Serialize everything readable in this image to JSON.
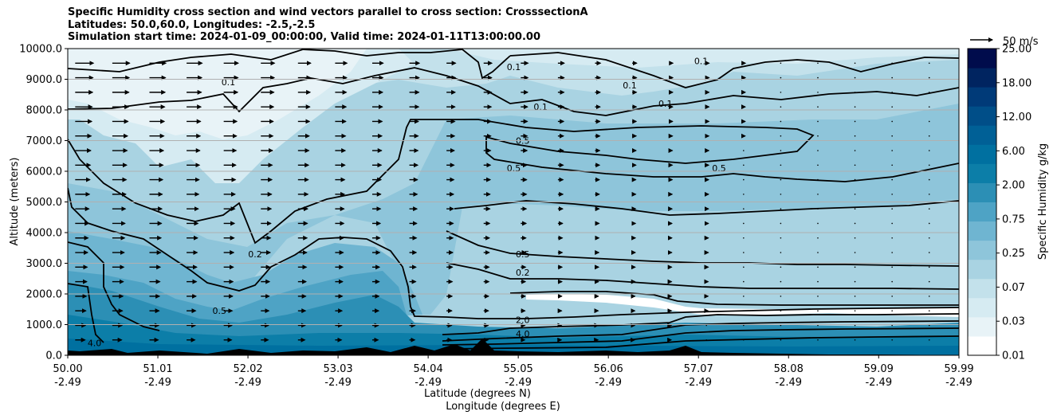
{
  "chart_data": {
    "type": "contourf",
    "title_lines": [
      "Specific Humidity cross section and wind vectors parallel to cross section: CrosssectionA",
      "Latitudes: 50.0,60.0, Longitudes: -2.5,-2.5",
      "Simulation start time: 2024-01-09_00:00:00, Valid time: 2024-01-11T13:00:00.00"
    ],
    "ylabel": "Altitude (meters)",
    "xlabel_lines": [
      "Latitude (degrees N)",
      "Longitude (degrees E)"
    ],
    "ylim": [
      0,
      10000
    ],
    "xlim": [
      50.0,
      59.99
    ],
    "y_ticks": [
      0,
      1000,
      2000,
      3000,
      4000,
      5000,
      6000,
      7000,
      8000,
      9000,
      10000
    ],
    "y_tick_labels": [
      "0.0",
      "1000.0",
      "2000.0",
      "3000.0",
      "4000.0",
      "5000.0",
      "6000.0",
      "7000.0",
      "8000.0",
      "9000.0",
      "10000.0"
    ],
    "x_ticks": [
      50.0,
      51.01,
      52.02,
      53.03,
      54.04,
      55.05,
      56.06,
      57.07,
      58.08,
      59.09,
      59.99
    ],
    "x_tick_labels": [
      {
        "lat": "50.00",
        "lon": "-2.49"
      },
      {
        "lat": "51.01",
        "lon": "-2.49"
      },
      {
        "lat": "52.02",
        "lon": "-2.49"
      },
      {
        "lat": "53.03",
        "lon": "-2.49"
      },
      {
        "lat": "54.04",
        "lon": "-2.49"
      },
      {
        "lat": "55.05",
        "lon": "-2.49"
      },
      {
        "lat": "56.06",
        "lon": "-2.49"
      },
      {
        "lat": "57.07",
        "lon": "-2.49"
      },
      {
        "lat": "58.08",
        "lon": "-2.49"
      },
      {
        "lat": "59.09",
        "lon": "-2.49"
      },
      {
        "lat": "59.99",
        "lon": "-2.49"
      }
    ],
    "grid_horizontal": true,
    "colorbar": {
      "label": "Specific Humidity g/kg",
      "levels": [
        "0.01",
        "0.03",
        "0.07",
        "0.25",
        "0.75",
        "2.00",
        "6.00",
        "12.00",
        "18.00",
        "25.00"
      ],
      "colors": [
        "#ffffff",
        "#e8f3f7",
        "#d6ebf2",
        "#c3e1eb",
        "#a9d3e2",
        "#8ec5da",
        "#6fb5d1",
        "#4ea3c5",
        "#2c8fb5",
        "#0c7ea8",
        "#0070a0",
        "#006096",
        "#004e88",
        "#003a78",
        "#002460",
        "#000c4c"
      ]
    },
    "quiver_key": {
      "label": "50 m/s",
      "value": 50
    },
    "contour_labels": [
      {
        "text": "0.1",
        "x": 51.8,
        "y": 8800
      },
      {
        "text": "0.2",
        "x": 52.1,
        "y": 3200
      },
      {
        "text": "0.5",
        "x": 51.7,
        "y": 1350
      },
      {
        "text": "4.0",
        "x": 50.3,
        "y": 300
      },
      {
        "text": "0.1",
        "x": 55.0,
        "y": 9300
      },
      {
        "text": "0.1",
        "x": 55.3,
        "y": 8000
      },
      {
        "text": "0.5",
        "x": 55.1,
        "y": 6900
      },
      {
        "text": "0.5",
        "x": 55.0,
        "y": 6000
      },
      {
        "text": "0.5",
        "x": 57.3,
        "y": 6000
      },
      {
        "text": "0.1",
        "x": 56.3,
        "y": 8700
      },
      {
        "text": "0.1",
        "x": 56.7,
        "y": 8100
      },
      {
        "text": "0.1",
        "x": 57.1,
        "y": 9500
      },
      {
        "text": "0.5",
        "x": 55.1,
        "y": 3200
      },
      {
        "text": "0.2",
        "x": 55.1,
        "y": 2600
      },
      {
        "text": "2.0",
        "x": 55.1,
        "y": 1050
      },
      {
        "text": "4.0",
        "x": 55.1,
        "y": 600
      }
    ],
    "wind": {
      "direction": "parallel, toward increasing latitude",
      "upper_speed_ms": 30,
      "speed_decreases_toward": "north"
    }
  }
}
